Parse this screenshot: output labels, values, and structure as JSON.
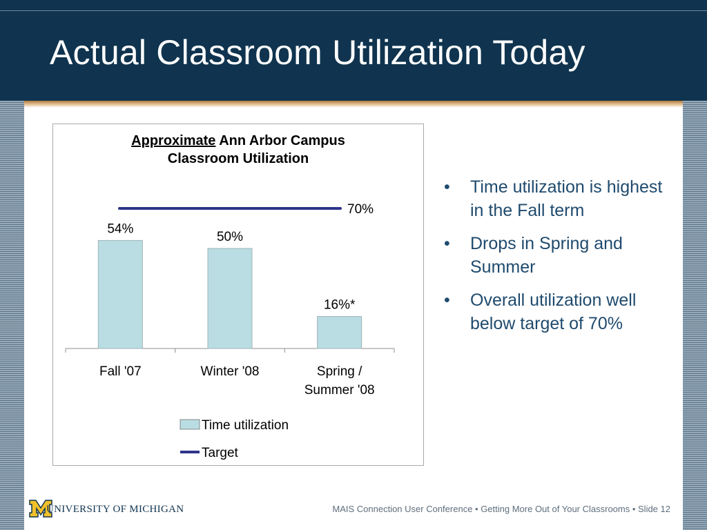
{
  "slide": {
    "title": "Actual Classroom Utilization Today"
  },
  "chart_data": {
    "type": "bar",
    "title_underlined": "Approximate",
    "title_rest": "Ann Arbor Campus",
    "title_line2": "Classroom Utilization",
    "categories": [
      [
        "Fall '07"
      ],
      [
        "Winter '08"
      ],
      [
        "Spring /",
        "Summer '08"
      ]
    ],
    "series": [
      {
        "name": "Time utilization",
        "values": [
          54,
          50,
          16
        ],
        "labels": [
          "54%",
          "50%",
          "16%*"
        ],
        "color": "#b9dde3"
      }
    ],
    "target": {
      "name": "Target",
      "value": 70,
      "label": "70%",
      "color": "#2c3489"
    },
    "ylim": [
      0,
      100
    ],
    "legend_position": "bottom",
    "grid": false
  },
  "bullets": [
    "Time utilization is highest in the Fall term",
    "Drops in Spring and Summer",
    "Overall utilization well below target of 70%"
  ],
  "footer": {
    "logo_initial": "M",
    "logo_text": "UNIVERSITY OF MICHIGAN",
    "text": "MAIS Connection User Conference  •  Getting More Out of Your Classrooms  •  Slide 12"
  },
  "colors": {
    "header_bg": "#10344f",
    "bullet_text": "#1f4a6d",
    "michigan_maize": "#f2c02a"
  }
}
